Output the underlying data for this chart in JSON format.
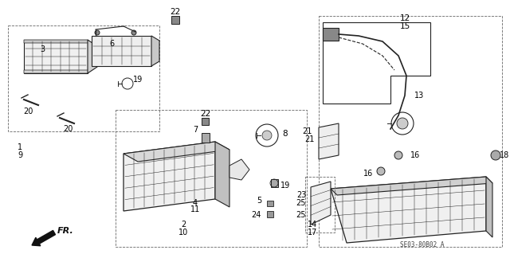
{
  "bg_color": "#ffffff",
  "line_color": "#222222",
  "text_color": "#000000",
  "diagram_code": "SE03-80B02 A",
  "fr_label": "FR.",
  "font_size": 7.0
}
